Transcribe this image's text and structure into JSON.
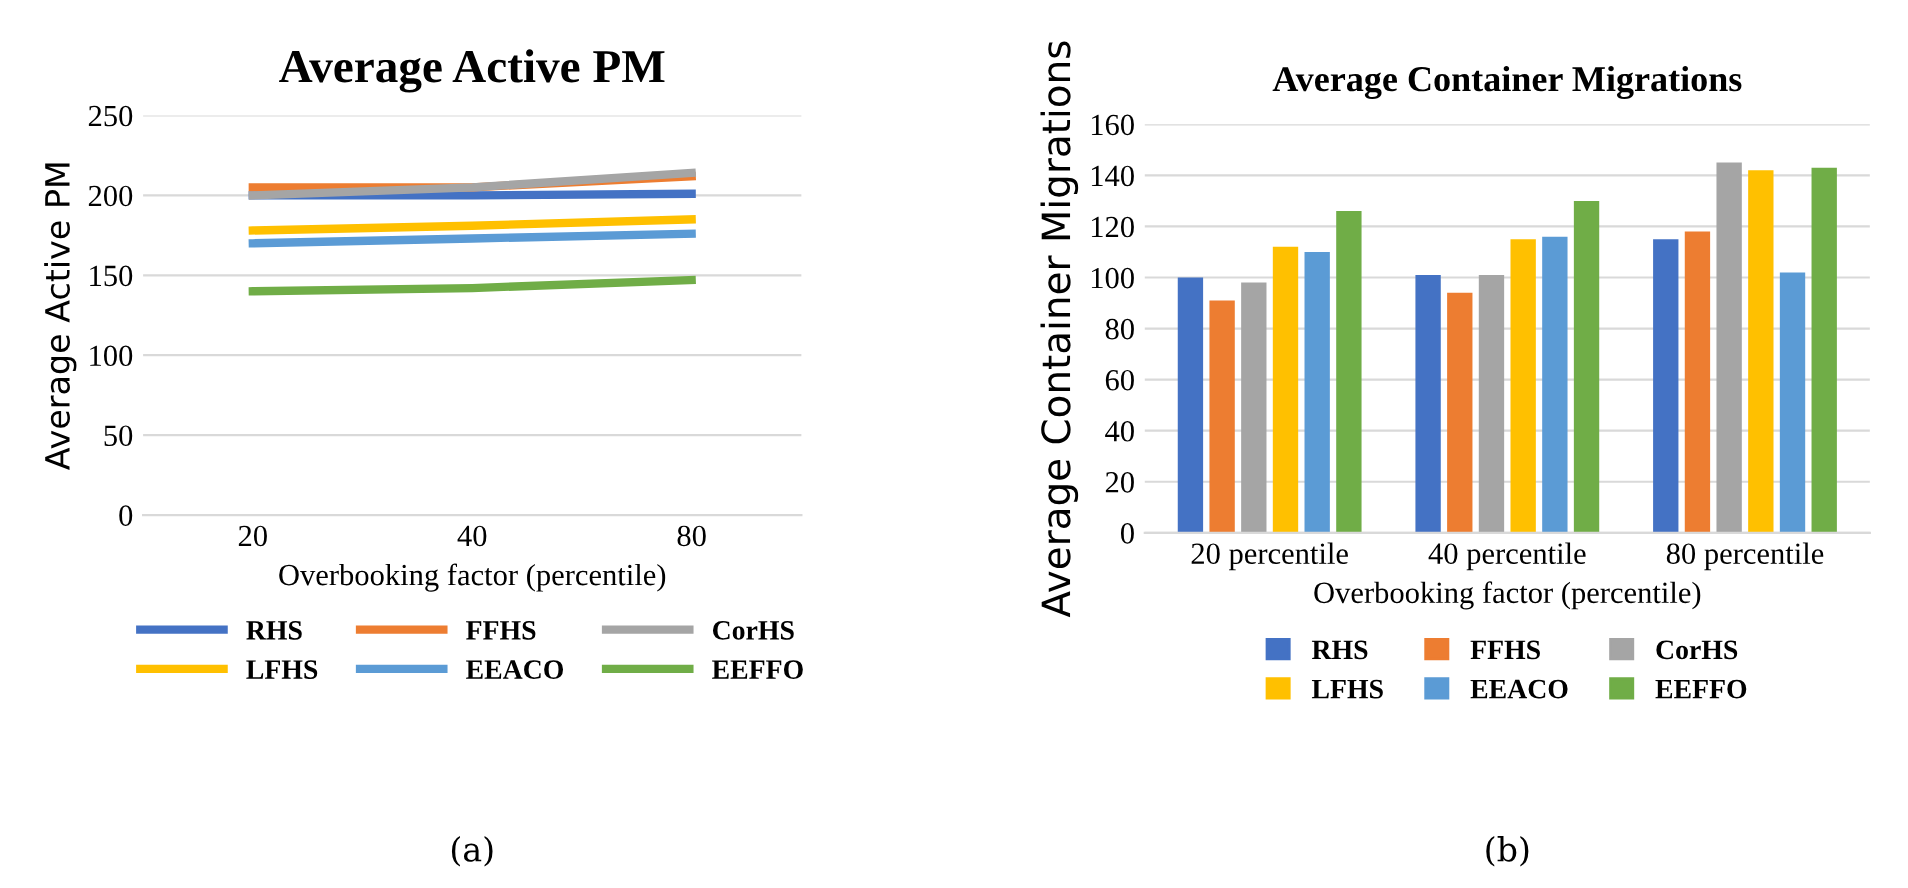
{
  "chart_data": [
    {
      "type": "line",
      "title": "Average Active PM",
      "xlabel": "Overbooking factor (percentile)",
      "ylabel": "Average Active PM",
      "categories": [
        "20",
        "40",
        "80"
      ],
      "ylim": [
        0,
        250
      ],
      "yticks": [
        0,
        50,
        100,
        150,
        200,
        250
      ],
      "grid": "y",
      "legend": "bottom",
      "marker": "none",
      "annotations": [
        "(a)"
      ],
      "series": [
        {
          "name": "RHS",
          "color": "#4472c4",
          "values": [
            200,
            200,
            201
          ]
        },
        {
          "name": "FFHS",
          "color": "#ed7d31",
          "values": [
            205,
            205,
            212
          ]
        },
        {
          "name": "CorHS",
          "color": "#a5a5a5",
          "values": [
            200,
            205,
            214
          ]
        },
        {
          "name": "LFHS",
          "color": "#ffc000",
          "values": [
            178,
            181,
            185
          ]
        },
        {
          "name": "EEACO",
          "color": "#5b9bd5",
          "values": [
            170,
            173,
            176
          ]
        },
        {
          "name": "EEFFO",
          "color": "#70ad47",
          "values": [
            140,
            142,
            147
          ]
        }
      ]
    },
    {
      "type": "bar",
      "title": "Average Container Migrations",
      "xlabel": "Overbooking factor (percentile)",
      "ylabel": "Average Container Migrations",
      "categories": [
        "20 percentile",
        "40 percentile",
        "80 percentile"
      ],
      "ylim": [
        0,
        160
      ],
      "yticks": [
        0,
        20,
        40,
        60,
        80,
        100,
        120,
        140,
        160
      ],
      "grid": "y",
      "legend": "bottom",
      "annotations": [
        "(b)"
      ],
      "series": [
        {
          "name": "RHS",
          "color": "#4472c4",
          "values": [
            100,
            101,
            115
          ]
        },
        {
          "name": "FFHS",
          "color": "#ed7d31",
          "values": [
            91,
            94,
            118
          ]
        },
        {
          "name": "CorHS",
          "color": "#a5a5a5",
          "values": [
            98,
            101,
            145
          ]
        },
        {
          "name": "LFHS",
          "color": "#ffc000",
          "values": [
            112,
            115,
            142
          ]
        },
        {
          "name": "EEACO",
          "color": "#5b9bd5",
          "values": [
            110,
            116,
            102
          ]
        },
        {
          "name": "EEFFO",
          "color": "#70ad47",
          "values": [
            126,
            130,
            143
          ]
        }
      ]
    }
  ]
}
